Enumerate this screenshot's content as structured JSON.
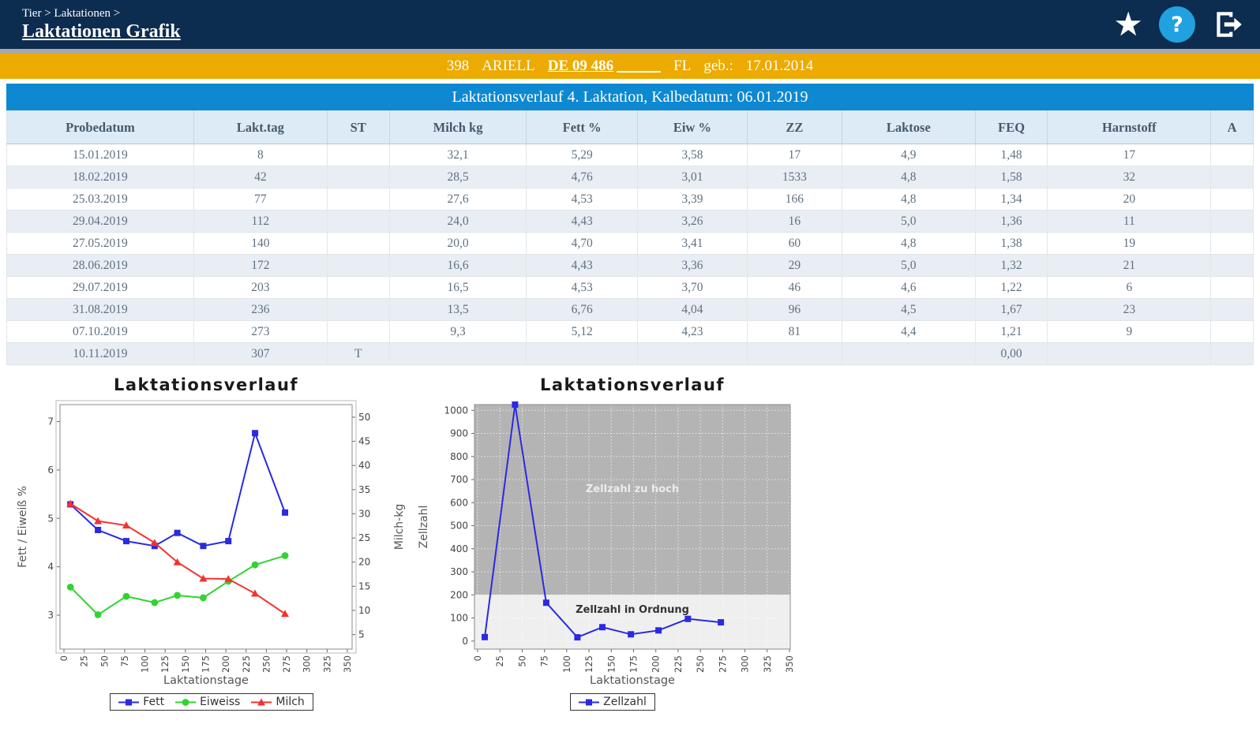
{
  "header": {
    "breadcrumb": "Tier > Laktationen >",
    "title": "Laktationen Grafik",
    "help_glyph": "?",
    "star_glyph": "★",
    "icons": [
      "star-icon",
      "help-icon",
      "logout-icon"
    ]
  },
  "animal_bar": {
    "number": "398",
    "name": "ARIELL",
    "id": "DE 09 486",
    "breed": "FL",
    "born_label": "geb.:",
    "birthdate": "17.01.2014"
  },
  "table": {
    "title": "Laktationsverlauf 4. Laktation, Kalbedatum: 06.01.2019",
    "columns": [
      "Probedatum",
      "Lakt.tag",
      "ST",
      "Milch kg",
      "Fett %",
      "Eiw %",
      "ZZ",
      "Laktose",
      "FEQ",
      "Harnstoff",
      "A"
    ],
    "rows": [
      [
        "15.01.2019",
        "8",
        "",
        "32,1",
        "5,29",
        "3,58",
        "17",
        "4,9",
        "1,48",
        "17",
        ""
      ],
      [
        "18.02.2019",
        "42",
        "",
        "28,5",
        "4,76",
        "3,01",
        "1533",
        "4,8",
        "1,58",
        "32",
        ""
      ],
      [
        "25.03.2019",
        "77",
        "",
        "27,6",
        "4,53",
        "3,39",
        "166",
        "4,8",
        "1,34",
        "20",
        ""
      ],
      [
        "29.04.2019",
        "112",
        "",
        "24,0",
        "4,43",
        "3,26",
        "16",
        "5,0",
        "1,36",
        "11",
        ""
      ],
      [
        "27.05.2019",
        "140",
        "",
        "20,0",
        "4,70",
        "3,41",
        "60",
        "4,8",
        "1,38",
        "19",
        ""
      ],
      [
        "28.06.2019",
        "172",
        "",
        "16,6",
        "4,43",
        "3,36",
        "29",
        "5,0",
        "1,32",
        "21",
        ""
      ],
      [
        "29.07.2019",
        "203",
        "",
        "16,5",
        "4,53",
        "3,70",
        "46",
        "4,6",
        "1,22",
        "6",
        ""
      ],
      [
        "31.08.2019",
        "236",
        "",
        "13,5",
        "6,76",
        "4,04",
        "96",
        "4,5",
        "1,67",
        "23",
        ""
      ],
      [
        "07.10.2019",
        "273",
        "",
        "9,3",
        "5,12",
        "4,23",
        "81",
        "4,4",
        "1,21",
        "9",
        ""
      ],
      [
        "10.11.2019",
        "307",
        "T",
        "",
        "",
        "",
        "",
        "",
        "0,00",
        "",
        ""
      ]
    ]
  },
  "chart_data": [
    {
      "type": "line",
      "title": "Laktationsverlauf",
      "xlabel": "Laktationstage",
      "ylabel_left": "Fett / Eiweiß %",
      "ylabel_right": "Milch-kg",
      "xlim": [
        0,
        350
      ],
      "x_tick_step": 25,
      "ylim_left": [
        2.3,
        7.35
      ],
      "y_ticks_left": [
        3,
        4,
        5,
        6,
        7
      ],
      "ylim_right": [
        2,
        52.6
      ],
      "y_ticks_right": [
        5,
        10,
        15,
        20,
        25,
        30,
        35,
        40,
        45,
        50
      ],
      "x": [
        8,
        42,
        77,
        112,
        140,
        172,
        203,
        236,
        273
      ],
      "series": [
        {
          "name": "Fett",
          "axis": "left",
          "color": "#2a2ae0",
          "marker": "square",
          "values": [
            5.29,
            4.76,
            4.53,
            4.43,
            4.7,
            4.43,
            4.53,
            6.76,
            5.12
          ]
        },
        {
          "name": "Eiweiss",
          "axis": "left",
          "color": "#2fd42f",
          "marker": "circle",
          "values": [
            3.58,
            3.01,
            3.39,
            3.26,
            3.41,
            3.36,
            3.7,
            4.04,
            4.23
          ]
        },
        {
          "name": "Milch",
          "axis": "right",
          "color": "#f33232",
          "marker": "triangle",
          "values": [
            32.1,
            28.5,
            27.6,
            24.0,
            20.0,
            16.6,
            16.5,
            13.5,
            9.3
          ]
        }
      ],
      "grid": false,
      "legend": [
        "Fett",
        "Eiweiss",
        "Milch"
      ],
      "legend_position": "bottom"
    },
    {
      "type": "line",
      "title": "Laktationsverlauf",
      "xlabel": "Laktationstage",
      "ylabel_left": "Zellzahl",
      "xlim": [
        0,
        350
      ],
      "x_tick_step": 25,
      "ylim_left": [
        -35,
        1025
      ],
      "y_ticks_left": [
        0,
        100,
        200,
        300,
        400,
        500,
        600,
        700,
        800,
        900,
        1000
      ],
      "x": [
        8,
        42,
        77,
        112,
        140,
        172,
        203,
        236,
        273
      ],
      "series": [
        {
          "name": "Zellzahl",
          "axis": "left",
          "color": "#2a2ae0",
          "marker": "square",
          "values": [
            17,
            1533,
            166,
            16,
            60,
            29,
            46,
            96,
            81
          ],
          "note": "value 1533 clipped at axis max 1000"
        }
      ],
      "zones": [
        {
          "label": "Zellzahl zu hoch",
          "from": 200,
          "to": 1025,
          "fill": "#b4b4b4",
          "label_color": "#ececec"
        },
        {
          "label": "Zellzahl in Ordnung",
          "from": -35,
          "to": 200,
          "fill": "#efefef",
          "label_color": "#333333"
        }
      ],
      "grid": true,
      "legend": [
        "Zellzahl"
      ],
      "legend_position": "bottom"
    }
  ],
  "colors": {
    "header_navy": "#0c2c50",
    "divider_gray": "#a9a9a9",
    "animal_bar_gold": "#edaa00",
    "band_blue": "#0d88d1",
    "help_circle_blue": "#21a1e0",
    "table_header_bg": "#dcebf6",
    "row_alt_bg": "#e9eef4",
    "line_blue": "#2a2ae0",
    "line_green": "#2fd42f",
    "line_red": "#f33232",
    "zone_gray": "#b4b4b4",
    "zone_light": "#efefef"
  }
}
